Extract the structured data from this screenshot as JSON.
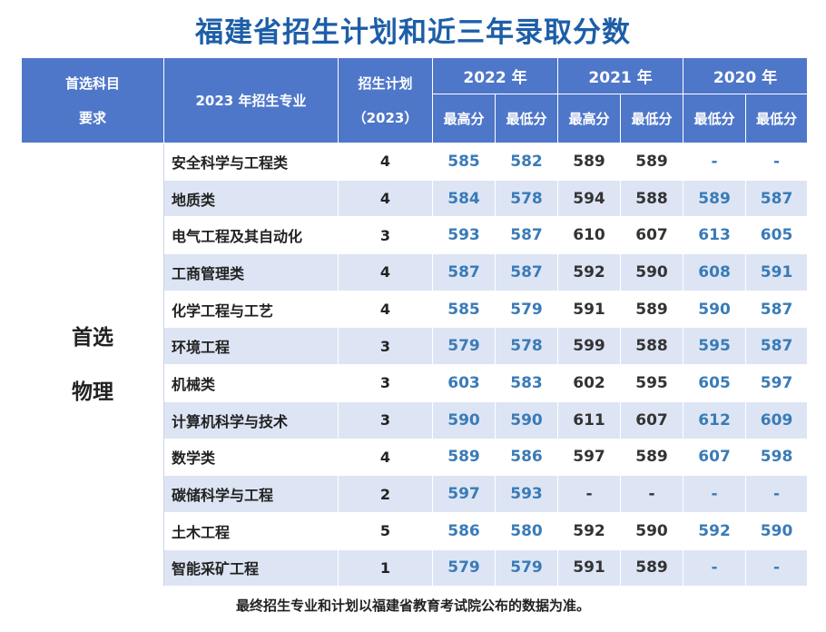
{
  "title": "福建省招生计划和近三年录取分数",
  "header": {
    "subject_req_line1": "首选科目",
    "subject_req_line2": "要求",
    "major": "2023 年招生专业",
    "plan_line1": "招生计划",
    "plan_line2": "（2023）",
    "years": [
      "2022 年",
      "2021 年",
      "2020 年"
    ],
    "sub_2022": [
      "最高分",
      "最低分"
    ],
    "sub_2021": [
      "最高分",
      "最低分"
    ],
    "sub_2020": [
      "最低分",
      "最低分"
    ]
  },
  "group": {
    "line1": "首选",
    "line2": "物理"
  },
  "rows": [
    {
      "major": "安全科学与工程类",
      "plan": "4",
      "y2022_max": "585",
      "y2022_min": "582",
      "y2021_max": "589",
      "y2021_min": "589",
      "y2020_a": "-",
      "y2020_b": "-"
    },
    {
      "major": "地质类",
      "plan": "4",
      "y2022_max": "584",
      "y2022_min": "578",
      "y2021_max": "594",
      "y2021_min": "588",
      "y2020_a": "589",
      "y2020_b": "587"
    },
    {
      "major": "电气工程及其自动化",
      "plan": "3",
      "y2022_max": "593",
      "y2022_min": "587",
      "y2021_max": "610",
      "y2021_min": "607",
      "y2020_a": "613",
      "y2020_b": "605"
    },
    {
      "major": "工商管理类",
      "plan": "4",
      "y2022_max": "587",
      "y2022_min": "587",
      "y2021_max": "592",
      "y2021_min": "590",
      "y2020_a": "608",
      "y2020_b": "591"
    },
    {
      "major": "化学工程与工艺",
      "plan": "4",
      "y2022_max": "585",
      "y2022_min": "579",
      "y2021_max": "591",
      "y2021_min": "589",
      "y2020_a": "590",
      "y2020_b": "587"
    },
    {
      "major": "环境工程",
      "plan": "3",
      "y2022_max": "579",
      "y2022_min": "578",
      "y2021_max": "599",
      "y2021_min": "588",
      "y2020_a": "595",
      "y2020_b": "587"
    },
    {
      "major": "机械类",
      "plan": "3",
      "y2022_max": "603",
      "y2022_min": "583",
      "y2021_max": "602",
      "y2021_min": "595",
      "y2020_a": "605",
      "y2020_b": "597"
    },
    {
      "major": "计算机科学与技术",
      "plan": "3",
      "y2022_max": "590",
      "y2022_min": "590",
      "y2021_max": "611",
      "y2021_min": "607",
      "y2020_a": "612",
      "y2020_b": "609"
    },
    {
      "major": "数学类",
      "plan": "4",
      "y2022_max": "589",
      "y2022_min": "586",
      "y2021_max": "597",
      "y2021_min": "589",
      "y2020_a": "607",
      "y2020_b": "598"
    },
    {
      "major": "碳储科学与工程",
      "plan": "2",
      "y2022_max": "597",
      "y2022_min": "593",
      "y2021_max": "-",
      "y2021_min": "-",
      "y2020_a": "-",
      "y2020_b": "-"
    },
    {
      "major": "土木工程",
      "plan": "5",
      "y2022_max": "586",
      "y2022_min": "580",
      "y2021_max": "592",
      "y2021_min": "590",
      "y2020_a": "592",
      "y2020_b": "590"
    },
    {
      "major": "智能采矿工程",
      "plan": "1",
      "y2022_max": "579",
      "y2022_min": "579",
      "y2021_max": "591",
      "y2021_min": "589",
      "y2020_a": "-",
      "y2020_b": "-"
    }
  ],
  "footer": "最终招生专业和计划以福建省教育考试院公布的数据为准。",
  "colors": {
    "title": "#1d5ea8",
    "header_bg": "#4f77c9",
    "stripe": "#dde5f4",
    "blue_value": "#3a7bb7"
  }
}
